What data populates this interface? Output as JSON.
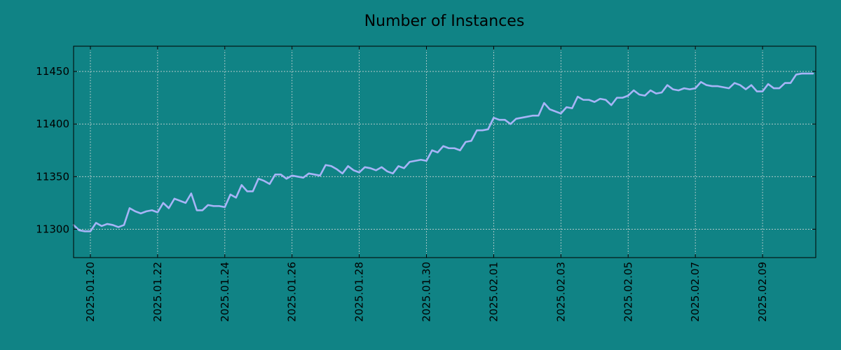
{
  "colors": {
    "background": "#108385",
    "line": "#a7b4f7",
    "grid": "#c8d4d4",
    "axes": "#000000"
  },
  "chart_data": {
    "type": "line",
    "title": "Number of Instances",
    "xlabel": "",
    "ylabel": "",
    "grid": true,
    "legend": "none",
    "xlim": [
      "2025-01-19T12:00",
      "2025-02-10T14:00"
    ],
    "ylim": [
      11273,
      11474
    ],
    "x_ticks": [
      "2025.01.20",
      "2025.01.22",
      "2025.01.24",
      "2025.01.26",
      "2025.01.28",
      "2025.01.30",
      "2025.02.01",
      "2025.02.03",
      "2025.02.05",
      "2025.02.07",
      "2025.02.09"
    ],
    "y_ticks": [
      "11300",
      "11350",
      "11400",
      "11450"
    ],
    "series": [
      {
        "x": [
          "2025-01-19T12:00",
          "2025-01-19T16:00",
          "2025-01-19T20:00",
          "2025-01-20T00:00",
          "2025-01-20T04:00",
          "2025-01-20T08:00",
          "2025-01-20T12:00",
          "2025-01-20T16:00",
          "2025-01-20T20:00",
          "2025-01-21T00:00",
          "2025-01-21T04:00",
          "2025-01-21T08:00",
          "2025-01-21T12:00",
          "2025-01-21T16:00",
          "2025-01-21T20:00",
          "2025-01-22T00:00",
          "2025-01-22T04:00",
          "2025-01-22T08:00",
          "2025-01-22T12:00",
          "2025-01-22T16:00",
          "2025-01-22T20:00",
          "2025-01-23T00:00",
          "2025-01-23T04:00",
          "2025-01-23T08:00",
          "2025-01-23T12:00",
          "2025-01-23T16:00",
          "2025-01-23T20:00",
          "2025-01-24T00:00",
          "2025-01-24T04:00",
          "2025-01-24T08:00",
          "2025-01-24T12:00",
          "2025-01-24T16:00",
          "2025-01-24T20:00",
          "2025-01-25T00:00",
          "2025-01-25T04:00",
          "2025-01-25T08:00",
          "2025-01-25T12:00",
          "2025-01-25T16:00",
          "2025-01-25T20:00",
          "2025-01-26T00:00",
          "2025-01-26T04:00",
          "2025-01-26T08:00",
          "2025-01-26T12:00",
          "2025-01-26T16:00",
          "2025-01-26T20:00",
          "2025-01-27T00:00",
          "2025-01-27T04:00",
          "2025-01-27T08:00",
          "2025-01-27T12:00",
          "2025-01-27T16:00",
          "2025-01-27T20:00",
          "2025-01-28T00:00",
          "2025-01-28T04:00",
          "2025-01-28T08:00",
          "2025-01-28T12:00",
          "2025-01-28T16:00",
          "2025-01-28T20:00",
          "2025-01-29T00:00",
          "2025-01-29T04:00",
          "2025-01-29T08:00",
          "2025-01-29T12:00",
          "2025-01-29T16:00",
          "2025-01-29T20:00",
          "2025-01-30T00:00",
          "2025-01-30T04:00",
          "2025-01-30T08:00",
          "2025-01-30T12:00",
          "2025-01-30T16:00",
          "2025-01-30T20:00",
          "2025-01-31T00:00",
          "2025-01-31T04:00",
          "2025-01-31T08:00",
          "2025-01-31T12:00",
          "2025-01-31T16:00",
          "2025-01-31T20:00",
          "2025-02-01T00:00",
          "2025-02-01T04:00",
          "2025-02-01T08:00",
          "2025-02-01T12:00",
          "2025-02-01T16:00",
          "2025-02-01T20:00",
          "2025-02-02T00:00",
          "2025-02-02T04:00",
          "2025-02-02T08:00",
          "2025-02-02T12:00",
          "2025-02-02T16:00",
          "2025-02-02T20:00",
          "2025-02-03T00:00",
          "2025-02-03T04:00",
          "2025-02-03T08:00",
          "2025-02-03T12:00",
          "2025-02-03T16:00",
          "2025-02-03T20:00",
          "2025-02-04T00:00",
          "2025-02-04T04:00",
          "2025-02-04T08:00",
          "2025-02-04T12:00",
          "2025-02-04T16:00",
          "2025-02-04T20:00",
          "2025-02-05T00:00",
          "2025-02-05T04:00",
          "2025-02-05T08:00",
          "2025-02-05T12:00",
          "2025-02-05T16:00",
          "2025-02-05T20:00",
          "2025-02-06T00:00",
          "2025-02-06T04:00",
          "2025-02-06T08:00",
          "2025-02-06T12:00",
          "2025-02-06T16:00",
          "2025-02-06T20:00",
          "2025-02-07T00:00",
          "2025-02-07T04:00",
          "2025-02-07T08:00",
          "2025-02-07T12:00",
          "2025-02-07T16:00",
          "2025-02-07T20:00",
          "2025-02-08T00:00",
          "2025-02-08T04:00",
          "2025-02-08T08:00",
          "2025-02-08T12:00",
          "2025-02-08T16:00",
          "2025-02-08T20:00",
          "2025-02-09T00:00",
          "2025-02-09T04:00",
          "2025-02-09T08:00",
          "2025-02-09T12:00",
          "2025-02-09T16:00",
          "2025-02-09T20:00",
          "2025-02-10T00:00",
          "2025-02-10T04:00",
          "2025-02-10T08:00",
          "2025-02-10T12:00"
        ],
        "values": [
          11304,
          11299,
          11298,
          11298,
          11306,
          11303,
          11305,
          11304,
          11302,
          11304,
          11320,
          11317,
          11315,
          11317,
          11318,
          11316,
          11325,
          11320,
          11329,
          11327,
          11325,
          11334,
          11318,
          11318,
          11323,
          11322,
          11322,
          11321,
          11333,
          11330,
          11342,
          11336,
          11336,
          11348,
          11346,
          11343,
          11352,
          11352,
          11348,
          11351,
          11350,
          11349,
          11353,
          11352,
          11351,
          11361,
          11360,
          11357,
          11353,
          11360,
          11356,
          11354,
          11359,
          11358,
          11356,
          11359,
          11355,
          11353,
          11360,
          11358,
          11364,
          11365,
          11366,
          11365,
          11375,
          11373,
          11379,
          11377,
          11377,
          11375,
          11383,
          11384,
          11394,
          11394,
          11395,
          11406,
          11404,
          11404,
          11400,
          11405,
          11406,
          11407,
          11408,
          11408,
          11420,
          11414,
          11412,
          11410,
          11416,
          11415,
          11426,
          11423,
          11423,
          11421,
          11424,
          11423,
          11418,
          11425,
          11425,
          11427,
          11432,
          11428,
          11427,
          11432,
          11429,
          11430,
          11437,
          11433,
          11432,
          11434,
          11433,
          11434,
          11440,
          11437,
          11436,
          11436,
          11435,
          11434,
          11439,
          11437,
          11433,
          11437,
          11431,
          11431,
          11438,
          11434,
          11434,
          11439,
          11439,
          11447,
          11448,
          11448,
          11448
        ]
      }
    ]
  }
}
